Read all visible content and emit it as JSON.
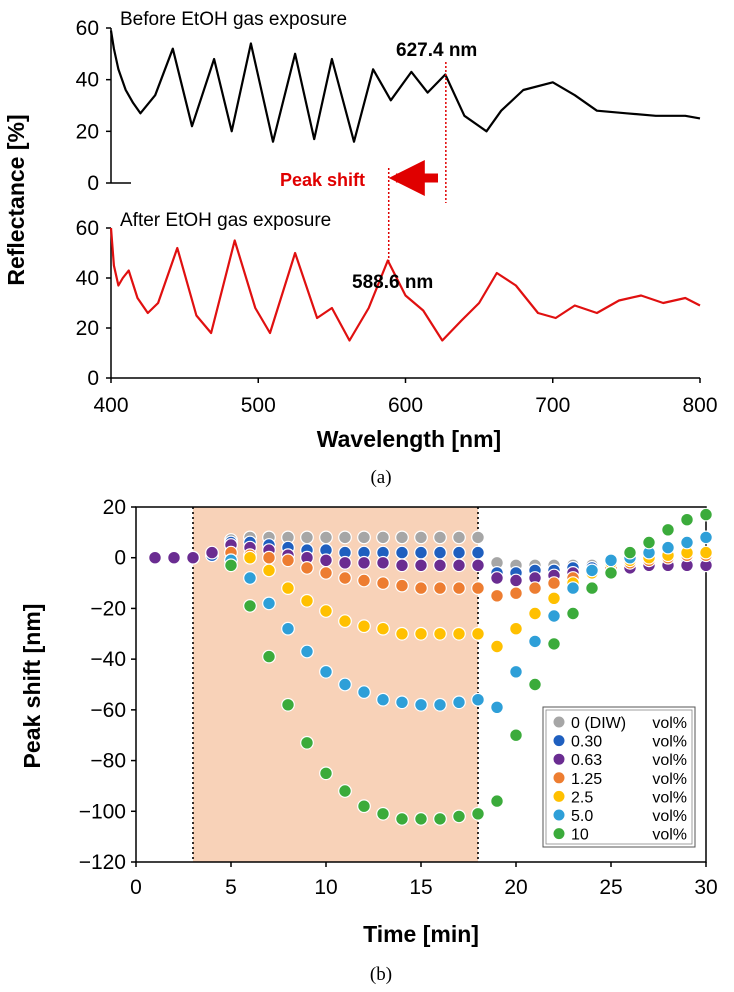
{
  "chart_data": [
    {
      "type": "line",
      "id": "a",
      "caption": "(a)",
      "xlabel": "Wavelength [nm]",
      "ylabel": "Reflectance [%]",
      "xlim": [
        400,
        800
      ],
      "x_ticks": [
        400,
        500,
        600,
        700,
        800
      ],
      "panels": [
        {
          "name": "Before EtOH gas exposure",
          "ylim": [
            0,
            60
          ],
          "y_ticks": [
            0,
            20,
            40,
            60
          ],
          "color": "#000000",
          "peak_label": "627.4 nm",
          "peak_x": 627.4,
          "x": [
            400,
            402,
            405,
            410,
            415,
            420,
            430,
            442,
            455,
            470,
            482,
            495,
            510,
            525,
            538,
            550,
            565,
            578,
            590,
            604,
            615,
            627,
            640,
            655,
            665,
            680,
            700,
            715,
            730,
            750,
            770,
            790,
            800
          ],
          "y": [
            59,
            52,
            44,
            36,
            31,
            27,
            34,
            52,
            22,
            48,
            20,
            54,
            16,
            50,
            17,
            48,
            16,
            44,
            32,
            43,
            35,
            42,
            26,
            20,
            28,
            36,
            39,
            34,
            28,
            27,
            26,
            26,
            25
          ]
        },
        {
          "name": "After EtOH gas exposure",
          "ylim": [
            0,
            60
          ],
          "y_ticks": [
            0,
            20,
            40,
            60
          ],
          "color": "#e01010",
          "peak_label": "588.6 nm",
          "peak_x": 588.6,
          "x": [
            400,
            402,
            405,
            408,
            412,
            418,
            425,
            432,
            445,
            458,
            468,
            484,
            498,
            508,
            525,
            540,
            550,
            562,
            575,
            588,
            600,
            612,
            625,
            638,
            650,
            662,
            675,
            690,
            702,
            715,
            730,
            745,
            760,
            775,
            790,
            800
          ],
          "y": [
            60,
            45,
            37,
            40,
            43,
            32,
            26,
            30,
            52,
            25,
            18,
            55,
            28,
            18,
            50,
            24,
            28,
            15,
            28,
            47,
            33,
            27,
            15,
            23,
            30,
            42,
            37,
            26,
            24,
            29,
            26,
            31,
            33,
            30,
            32,
            29
          ]
        }
      ],
      "annotation": "Peak shift"
    },
    {
      "type": "scatter",
      "id": "b",
      "caption": "(b)",
      "xlabel": "Time [min]",
      "ylabel": "Peak shift [nm]",
      "xlim": [
        0,
        30
      ],
      "ylim": [
        -120,
        20
      ],
      "x_ticks": [
        0,
        5,
        10,
        15,
        20,
        25,
        30
      ],
      "y_ticks": [
        -120,
        -100,
        -80,
        -60,
        -40,
        -20,
        0,
        20
      ],
      "shaded_region": [
        3,
        18
      ],
      "shade_color": "#f8d2b8",
      "legend_position": "lower-right",
      "series": [
        {
          "name": "0 (DIW)",
          "unit": "vol%",
          "color": "#a6a6a6",
          "x": [
            1,
            2,
            3,
            4,
            5,
            6,
            7,
            8,
            9,
            10,
            11,
            12,
            13,
            14,
            15,
            16,
            17,
            18,
            19,
            20,
            21,
            22,
            23,
            24,
            25,
            26,
            27,
            28,
            29,
            30
          ],
          "y": [
            0,
            0,
            0,
            1,
            7,
            8,
            8,
            8,
            8,
            8,
            8,
            8,
            8,
            8,
            8,
            8,
            8,
            8,
            -2,
            -3,
            -3,
            -3,
            -3,
            -3,
            -3,
            -3,
            -3,
            -3,
            -3,
            -2
          ]
        },
        {
          "name": "0.30",
          "unit": "vol%",
          "color": "#1f5fbf",
          "x": [
            1,
            2,
            3,
            4,
            5,
            6,
            7,
            8,
            9,
            10,
            11,
            12,
            13,
            14,
            15,
            16,
            17,
            18,
            19,
            20,
            21,
            22,
            23,
            24,
            25,
            26,
            27,
            28,
            29,
            30
          ],
          "y": [
            0,
            0,
            0,
            1,
            6,
            6,
            5,
            4,
            3,
            3,
            2,
            2,
            2,
            2,
            2,
            2,
            2,
            2,
            -6,
            -6,
            -5,
            -5,
            -4,
            -4,
            -4,
            -3,
            -3,
            -3,
            -2,
            -2
          ]
        },
        {
          "name": "0.63",
          "unit": "vol%",
          "color": "#6a2c91",
          "x": [
            1,
            2,
            3,
            4,
            5,
            6,
            7,
            8,
            9,
            10,
            11,
            12,
            13,
            14,
            15,
            16,
            17,
            18,
            19,
            20,
            21,
            22,
            23,
            24,
            25,
            26,
            27,
            28,
            29,
            30
          ],
          "y": [
            0,
            0,
            0,
            2,
            5,
            4,
            3,
            1,
            0,
            -1,
            -2,
            -2,
            -2,
            -3,
            -3,
            -3,
            -3,
            -3,
            -8,
            -9,
            -8,
            -7,
            -6,
            -5,
            -4,
            -4,
            -3,
            -3,
            -3,
            -3
          ]
        },
        {
          "name": "1.25",
          "unit": "vol%",
          "color": "#ed7d31",
          "x": [
            5,
            6,
            7,
            8,
            9,
            10,
            11,
            12,
            13,
            14,
            15,
            16,
            17,
            18,
            19,
            20,
            21,
            22,
            23,
            24,
            25,
            26,
            27,
            28,
            29,
            30
          ],
          "y": [
            2,
            1,
            0,
            -1,
            -4,
            -6,
            -8,
            -9,
            -10,
            -11,
            -12,
            -12,
            -12,
            -12,
            -15,
            -14,
            -12,
            -10,
            -8,
            -6,
            -4,
            -2,
            -1,
            0,
            1,
            1
          ]
        },
        {
          "name": "2.5",
          "unit": "vol%",
          "color": "#ffc000",
          "x": [
            5,
            6,
            7,
            8,
            9,
            10,
            11,
            12,
            13,
            14,
            15,
            16,
            17,
            18,
            19,
            20,
            21,
            22,
            23,
            24,
            25,
            26,
            27,
            28,
            29,
            30
          ],
          "y": [
            -1,
            0,
            -5,
            -12,
            -17,
            -21,
            -25,
            -27,
            -28,
            -30,
            -30,
            -30,
            -30,
            -30,
            -35,
            -28,
            -22,
            -16,
            -10,
            -6,
            -2,
            -1,
            0,
            1,
            2,
            2
          ]
        },
        {
          "name": "5.0",
          "unit": "vol%",
          "color": "#2e9fd8",
          "x": [
            5,
            6,
            7,
            8,
            9,
            10,
            11,
            12,
            13,
            14,
            15,
            16,
            17,
            18,
            19,
            20,
            21,
            22,
            23,
            24,
            25,
            26,
            27,
            28,
            29,
            30
          ],
          "y": [
            -1,
            -8,
            -18,
            -28,
            -37,
            -45,
            -50,
            -53,
            -56,
            -57,
            -58,
            -58,
            -57,
            -56,
            -59,
            -45,
            -33,
            -23,
            -12,
            -5,
            -1,
            0,
            2,
            4,
            6,
            8
          ]
        },
        {
          "name": "10",
          "unit": "vol%",
          "color": "#3bab3b",
          "x": [
            5,
            6,
            7,
            8,
            9,
            10,
            11,
            12,
            13,
            14,
            15,
            16,
            17,
            18,
            19,
            20,
            21,
            22,
            23,
            24,
            25,
            26,
            27,
            28,
            29,
            30
          ],
          "y": [
            -3,
            -19,
            -39,
            -58,
            -73,
            -85,
            -92,
            -98,
            -101,
            -103,
            -103,
            -103,
            -102,
            -101,
            -96,
            -70,
            -50,
            -34,
            -22,
            -12,
            -6,
            2,
            6,
            11,
            15,
            17
          ]
        }
      ]
    }
  ]
}
